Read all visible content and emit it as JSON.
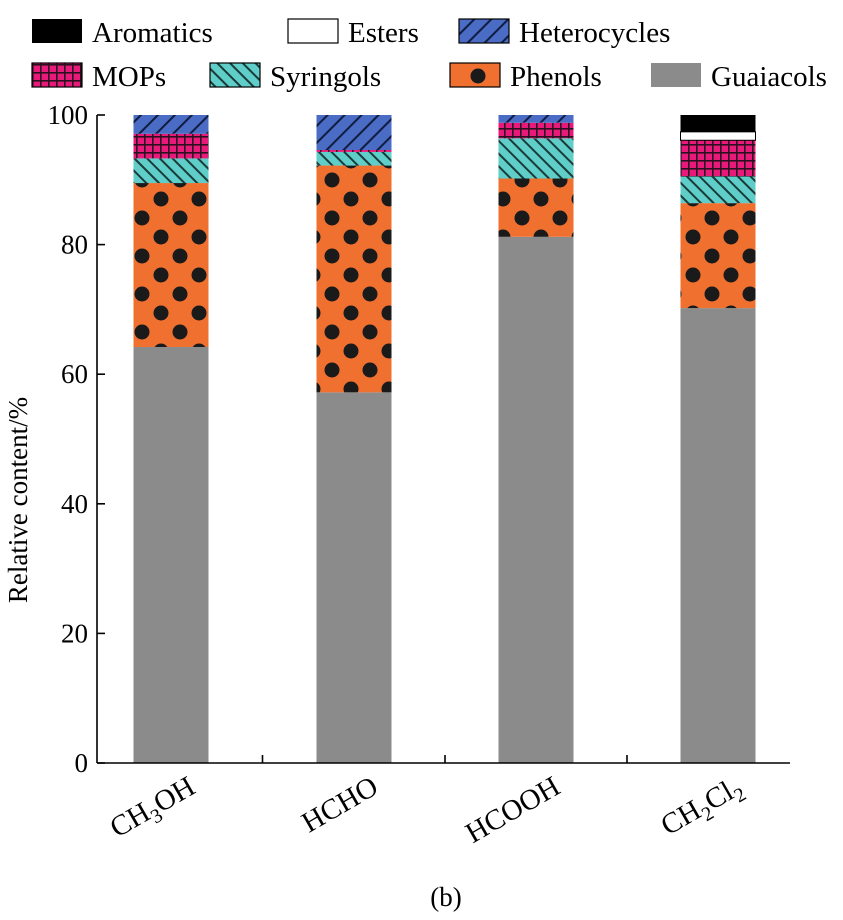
{
  "chart_data": {
    "type": "bar",
    "stacked": true,
    "categories": [
      {
        "main": "CH",
        "sub1": "3",
        "mid": "OH",
        "sub2": ""
      },
      {
        "main": "HCHO",
        "sub1": "",
        "mid": "",
        "sub2": ""
      },
      {
        "main": "HCOOH",
        "sub1": "",
        "mid": "",
        "sub2": ""
      },
      {
        "main": "CH",
        "sub1": "2",
        "mid": "Cl",
        "sub2": "2"
      }
    ],
    "series": [
      {
        "name": "Guaiacols",
        "values": [
          64.2,
          57.2,
          81.2,
          70.2
        ],
        "color": "#8c8b8b",
        "pattern": "solid"
      },
      {
        "name": "Phenols",
        "values": [
          25.3,
          35.0,
          9.0,
          16.2
        ],
        "color": "#f07030",
        "pattern": "dots"
      },
      {
        "name": "Syringols",
        "values": [
          3.8,
          2.1,
          6.2,
          4.1
        ],
        "color": "#5fcdc8",
        "pattern": "backslash"
      },
      {
        "name": "MOPs",
        "values": [
          3.8,
          0.3,
          2.4,
          5.6
        ],
        "color": "#e8197a",
        "pattern": "grid"
      },
      {
        "name": "Heterocycles",
        "values": [
          2.9,
          5.4,
          1.2,
          0.0
        ],
        "color": "#4a6cc4",
        "pattern": "slash"
      },
      {
        "name": "Esters",
        "values": [
          0.0,
          0.0,
          0.0,
          1.3
        ],
        "color": "#ffffff",
        "pattern": "solid"
      },
      {
        "name": "Aromatics",
        "values": [
          0.0,
          0.0,
          0.0,
          2.6
        ],
        "color": "#000000",
        "pattern": "solid"
      }
    ],
    "legend_order": [
      "Aromatics",
      "Esters",
      "Heterocycles",
      "MOPs",
      "Syringols",
      "Phenols",
      "Guaiacols"
    ],
    "legend_placement": "top",
    "ylabel": "Relative content/%",
    "xlabel": "",
    "ylim": [
      0,
      100
    ],
    "yticks": [
      0,
      20,
      40,
      60,
      80,
      100
    ],
    "grid": false,
    "caption": "(b)"
  }
}
